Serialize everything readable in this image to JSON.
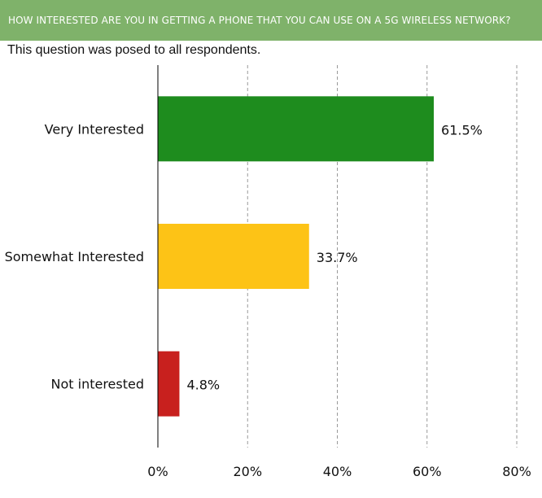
{
  "header": {
    "title": "HOW INTERESTED ARE YOU IN GETTING A PHONE THAT YOU CAN USE ON A 5G WIRELESS NETWORK?",
    "subtitle": "This question was posed to all respondents."
  },
  "colors": {
    "header_bg": "#7fb26a",
    "gridline": "#999999",
    "axis": "#000000"
  },
  "chart_data": {
    "type": "bar",
    "orientation": "horizontal",
    "title": "",
    "xlabel": "",
    "ylabel": "",
    "xlim": [
      0,
      80
    ],
    "grid": true,
    "categories": [
      "Very Interested",
      "Somewhat Interested",
      "Not interested"
    ],
    "values": [
      61.5,
      33.7,
      4.8
    ],
    "value_labels": [
      "61.5%",
      "33.7%",
      "4.8%"
    ],
    "bar_colors": [
      "#1e8c1e",
      "#fdc316",
      "#c8201e"
    ],
    "ticks": [
      0,
      20,
      40,
      60,
      80
    ],
    "tick_labels": [
      "0%",
      "20%",
      "40%",
      "60%",
      "80%"
    ]
  }
}
